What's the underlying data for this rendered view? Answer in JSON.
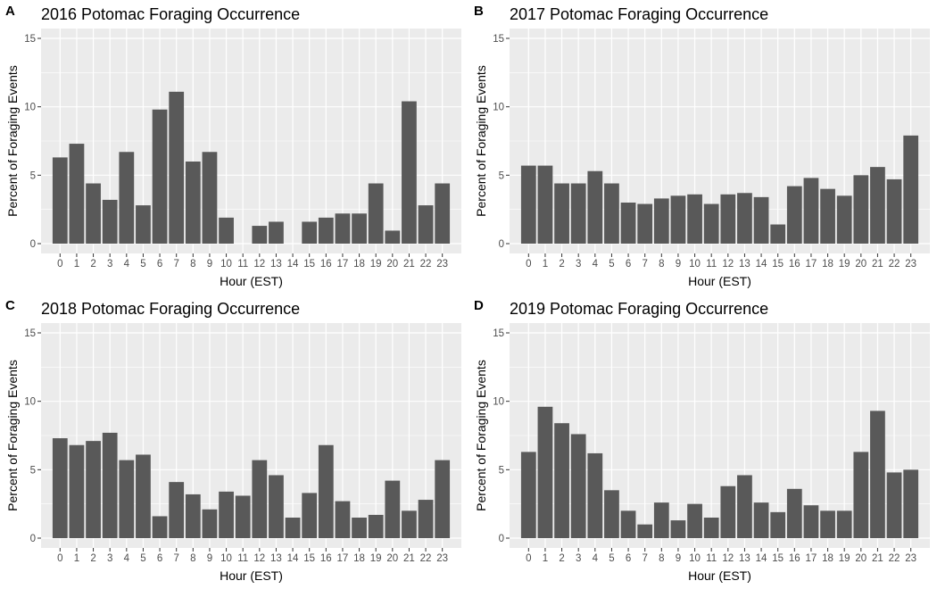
{
  "chart_data": [
    {
      "panel": "A",
      "type": "bar",
      "title": "2016 Potomac Foraging Occurrence",
      "xlabel": "Hour (EST)",
      "ylabel": "Percent of Foraging Events",
      "ylim": [
        0,
        15
      ],
      "yticks": [
        0,
        5,
        10,
        15
      ],
      "categories": [
        "0",
        "1",
        "2",
        "3",
        "4",
        "5",
        "6",
        "7",
        "8",
        "9",
        "10",
        "11",
        "12",
        "13",
        "14",
        "15",
        "16",
        "17",
        "18",
        "19",
        "20",
        "21",
        "22",
        "23"
      ],
      "values": [
        6.3,
        7.3,
        4.4,
        3.2,
        6.7,
        2.8,
        9.8,
        11.1,
        6.0,
        6.7,
        1.9,
        0,
        1.3,
        1.6,
        0,
        1.6,
        1.9,
        2.2,
        2.2,
        4.4,
        0.95,
        10.4,
        2.8,
        4.4
      ],
      "grid": true
    },
    {
      "panel": "B",
      "type": "bar",
      "title": "2017 Potomac Foraging Occurrence",
      "xlabel": "Hour (EST)",
      "ylabel": "Percent of Foraging Events",
      "ylim": [
        0,
        15
      ],
      "yticks": [
        0,
        5,
        10,
        15
      ],
      "categories": [
        "0",
        "1",
        "2",
        "3",
        "4",
        "5",
        "6",
        "7",
        "8",
        "9",
        "10",
        "11",
        "12",
        "13",
        "14",
        "15",
        "16",
        "17",
        "18",
        "19",
        "20",
        "21",
        "22",
        "23"
      ],
      "values": [
        5.7,
        5.7,
        4.4,
        4.4,
        5.3,
        4.4,
        3.0,
        2.9,
        3.3,
        3.5,
        3.6,
        2.9,
        3.6,
        3.7,
        3.4,
        1.4,
        4.2,
        4.8,
        4.0,
        3.5,
        5.0,
        5.6,
        4.7,
        7.9
      ],
      "grid": true
    },
    {
      "panel": "C",
      "type": "bar",
      "title": "2018 Potomac Foraging Occurrence",
      "xlabel": "Hour (EST)",
      "ylabel": "Percent of Foraging Events",
      "ylim": [
        0,
        15
      ],
      "yticks": [
        0,
        5,
        10,
        15
      ],
      "categories": [
        "0",
        "1",
        "2",
        "3",
        "4",
        "5",
        "6",
        "7",
        "8",
        "9",
        "10",
        "11",
        "12",
        "13",
        "14",
        "15",
        "16",
        "17",
        "18",
        "19",
        "20",
        "21",
        "22",
        "23"
      ],
      "values": [
        7.3,
        6.8,
        7.1,
        7.7,
        5.7,
        6.1,
        1.6,
        4.1,
        3.2,
        2.1,
        3.4,
        3.1,
        5.7,
        4.6,
        1.5,
        3.3,
        6.8,
        2.7,
        1.5,
        1.7,
        4.2,
        2.0,
        2.8,
        5.7
      ],
      "grid": true
    },
    {
      "panel": "D",
      "type": "bar",
      "title": "2019 Potomac Foraging Occurrence",
      "xlabel": "Hour (EST)",
      "ylabel": "Percent of Foraging Events",
      "ylim": [
        0,
        15
      ],
      "yticks": [
        0,
        5,
        10,
        15
      ],
      "categories": [
        "0",
        "1",
        "2",
        "3",
        "4",
        "5",
        "6",
        "7",
        "8",
        "9",
        "10",
        "11",
        "12",
        "13",
        "14",
        "15",
        "16",
        "17",
        "18",
        "19",
        "20",
        "21",
        "22",
        "23"
      ],
      "values": [
        6.3,
        9.6,
        8.4,
        7.6,
        6.2,
        3.5,
        2.0,
        1.0,
        2.6,
        1.3,
        2.5,
        1.5,
        3.8,
        4.6,
        2.6,
        1.9,
        3.6,
        2.4,
        2.0,
        2.0,
        6.3,
        9.3,
        4.8,
        5.0
      ],
      "grid": true
    }
  ],
  "colors": {
    "panel_background": "#ebebeb",
    "grid": "#ffffff",
    "bar": "#595959",
    "tick_text": "#4d4d4d"
  }
}
